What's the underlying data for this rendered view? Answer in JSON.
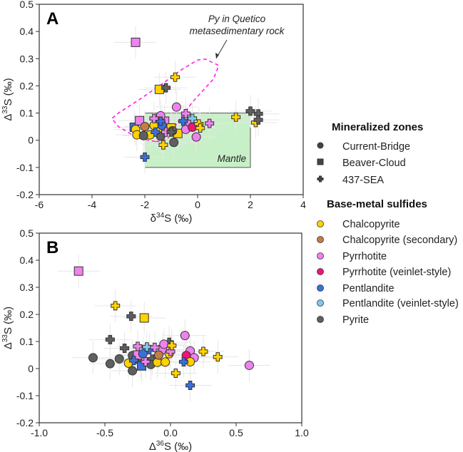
{
  "chart_data": [
    {
      "type": "scatter",
      "panel_label": "A",
      "xlabel": {
        "pre": "δ",
        "sup": "34",
        "post": "S (‰)"
      },
      "ylabel": {
        "pre": "Δ",
        "sup": "33",
        "post": "S (‰)"
      },
      "xlim": [
        -6,
        4
      ],
      "ylim": [
        -0.2,
        0.5
      ],
      "xticks": [
        -6,
        -4,
        -2,
        0,
        2,
        4
      ],
      "yticks": [
        -0.2,
        -0.1,
        0,
        0.1,
        0.2,
        0.3,
        0.4,
        0.5
      ],
      "regions": [
        {
          "name": "Mantle",
          "label": "Mantle",
          "x": [
            -2,
            2
          ],
          "y": [
            -0.1,
            0.1
          ],
          "color": "#c8f0c8"
        }
      ],
      "outline": {
        "label_lines": [
          "Py in Quetico",
          "metasedimentary rock"
        ],
        "color": "#ff22dd",
        "points": [
          [
            -1.6,
            -0.005
          ],
          [
            -2.3,
            0.01
          ],
          [
            -3.0,
            0.05
          ],
          [
            -3.25,
            0.08
          ],
          [
            -3.0,
            0.1
          ],
          [
            -2.2,
            0.15
          ],
          [
            -1.3,
            0.21
          ],
          [
            -0.6,
            0.26
          ],
          [
            0.0,
            0.295
          ],
          [
            0.3,
            0.298
          ],
          [
            0.8,
            0.275
          ],
          [
            0.6,
            0.225
          ],
          [
            -0.2,
            0.14
          ],
          [
            -0.8,
            0.06
          ],
          [
            -1.1,
            0.01
          ],
          [
            -1.3,
            -0.002
          ]
        ]
      },
      "points": [
        {
          "x": -2.35,
          "y": 0.36,
          "zone": "Beaver-Cloud",
          "mineral": "Pyrrhotite"
        },
        {
          "x": -1.45,
          "y": 0.187,
          "zone": "Beaver-Cloud",
          "mineral": "Chalcopyrite"
        },
        {
          "x": -1.2,
          "y": 0.193,
          "zone": "437-SEA",
          "mineral": "Pyrite"
        },
        {
          "x": -0.85,
          "y": 0.232,
          "zone": "437-SEA",
          "mineral": "Chalcopyrite"
        },
        {
          "x": -0.8,
          "y": 0.122,
          "zone": "Current-Bridge",
          "mineral": "Pyrrhotite"
        },
        {
          "x": -2.4,
          "y": 0.048,
          "zone": "Beaver-Cloud",
          "mineral": "Pentlandite"
        },
        {
          "x": -2.2,
          "y": 0.072,
          "zone": "Beaver-Cloud",
          "mineral": "Pyrrhotite"
        },
        {
          "x": -1.25,
          "y": 0.07,
          "zone": "Beaver-Cloud",
          "mineral": "Pyrrhotite"
        },
        {
          "x": -0.75,
          "y": 0.025,
          "zone": "Beaver-Cloud",
          "mineral": "Chalcopyrite"
        },
        {
          "x": -1.0,
          "y": 0.045,
          "zone": "Beaver-Cloud",
          "mineral": "Chalcopyrite"
        },
        {
          "x": -2.0,
          "y": 0.05,
          "zone": "Current-Bridge",
          "mineral": "Chalcopyrite (secondary)"
        },
        {
          "x": -2.35,
          "y": 0.04,
          "zone": "Current-Bridge",
          "mineral": "Chalcopyrite"
        },
        {
          "x": -2.3,
          "y": 0.02,
          "zone": "Current-Bridge",
          "mineral": "Chalcopyrite"
        },
        {
          "x": -1.65,
          "y": 0.055,
          "zone": "Current-Bridge",
          "mineral": "Chalcopyrite"
        },
        {
          "x": -1.8,
          "y": 0.02,
          "zone": "Current-Bridge",
          "mineral": "Chalcopyrite"
        },
        {
          "x": -1.5,
          "y": 0.03,
          "zone": "Current-Bridge",
          "mineral": "Chalcopyrite"
        },
        {
          "x": -2.05,
          "y": 0.017,
          "zone": "Current-Bridge",
          "mineral": "Pyrite"
        },
        {
          "x": -1.4,
          "y": 0.015,
          "zone": "Current-Bridge",
          "mineral": "Pyrite"
        },
        {
          "x": -0.95,
          "y": 0.035,
          "zone": "Current-Bridge",
          "mineral": "Pyrite"
        },
        {
          "x": -0.9,
          "y": -0.008,
          "zone": "Current-Bridge",
          "mineral": "Pyrite"
        },
        {
          "x": -1.4,
          "y": 0.09,
          "zone": "Current-Bridge",
          "mineral": "Pyrrhotite"
        },
        {
          "x": -0.45,
          "y": 0.04,
          "zone": "Current-Bridge",
          "mineral": "Pyrrhotite"
        },
        {
          "x": -0.3,
          "y": 0.065,
          "zone": "Current-Bridge",
          "mineral": "Pyrrhotite"
        },
        {
          "x": -0.05,
          "y": 0.012,
          "zone": "Current-Bridge",
          "mineral": "Pyrrhotite"
        },
        {
          "x": -0.2,
          "y": 0.048,
          "zone": "Current-Bridge",
          "mineral": "Pyrrhotite (veinlet-style)"
        },
        {
          "x": -1.35,
          "y": 0.055,
          "zone": "Current-Bridge",
          "mineral": "Pentlandite"
        },
        {
          "x": -1.4,
          "y": 0.07,
          "zone": "437-SEA",
          "mineral": "Pentlandite"
        },
        {
          "x": -0.55,
          "y": 0.07,
          "zone": "437-SEA",
          "mineral": "Pentlandite"
        },
        {
          "x": -1.6,
          "y": 0.03,
          "zone": "437-SEA",
          "mineral": "Pentlandite"
        },
        {
          "x": -2.0,
          "y": -0.062,
          "zone": "437-SEA",
          "mineral": "Pentlandite"
        },
        {
          "x": -0.2,
          "y": 0.08,
          "zone": "437-SEA",
          "mineral": "Pentlandite (veinlet-style)"
        },
        {
          "x": -0.45,
          "y": 0.098,
          "zone": "437-SEA",
          "mineral": "Pyrrhotite"
        },
        {
          "x": -1.65,
          "y": 0.08,
          "zone": "437-SEA",
          "mineral": "Pyrrhotite"
        },
        {
          "x": 0.45,
          "y": 0.062,
          "zone": "437-SEA",
          "mineral": "Pyrrhotite"
        },
        {
          "x": -1.2,
          "y": 0.03,
          "zone": "437-SEA",
          "mineral": "Pyrrhotite"
        },
        {
          "x": -1.3,
          "y": -0.017,
          "zone": "437-SEA",
          "mineral": "Chalcopyrite"
        },
        {
          "x": 0.05,
          "y": 0.06,
          "zone": "437-SEA",
          "mineral": "Chalcopyrite"
        },
        {
          "x": 0.1,
          "y": 0.045,
          "zone": "437-SEA",
          "mineral": "Chalcopyrite"
        },
        {
          "x": 1.45,
          "y": 0.085,
          "zone": "437-SEA",
          "mineral": "Chalcopyrite"
        },
        {
          "x": 2.2,
          "y": 0.065,
          "zone": "437-SEA",
          "mineral": "Chalcopyrite"
        },
        {
          "x": 2.0,
          "y": 0.107,
          "zone": "437-SEA",
          "mineral": "Pyrite"
        },
        {
          "x": 2.3,
          "y": 0.097,
          "zone": "437-SEA",
          "mineral": "Pyrite"
        },
        {
          "x": 2.3,
          "y": 0.075,
          "zone": "437-SEA",
          "mineral": "Pyrite"
        },
        {
          "x": -1.0,
          "y": 0.03,
          "zone": "437-SEA",
          "mineral": "Pyrite"
        }
      ]
    },
    {
      "type": "scatter",
      "panel_label": "B",
      "xlabel": {
        "pre": "Δ",
        "sup": "36",
        "post": "S (‰)"
      },
      "ylabel": {
        "pre": "Δ",
        "sup": "33",
        "post": "S (‰)"
      },
      "xlim": [
        -1.0,
        1.0
      ],
      "ylim": [
        -0.2,
        0.5
      ],
      "xticks": [
        -1.0,
        -0.5,
        0.0,
        0.5,
        1.0
      ],
      "yticks": [
        -0.2,
        -0.1,
        0,
        0.1,
        0.2,
        0.3,
        0.4,
        0.5
      ],
      "points": [
        {
          "x": -0.7,
          "y": 0.36,
          "zone": "Beaver-Cloud",
          "mineral": "Pyrrhotite"
        },
        {
          "x": -0.42,
          "y": 0.232,
          "zone": "437-SEA",
          "mineral": "Chalcopyrite"
        },
        {
          "x": -0.3,
          "y": 0.193,
          "zone": "437-SEA",
          "mineral": "Pyrite"
        },
        {
          "x": -0.2,
          "y": 0.187,
          "zone": "Beaver-Cloud",
          "mineral": "Chalcopyrite"
        },
        {
          "x": -0.46,
          "y": 0.107,
          "zone": "437-SEA",
          "mineral": "Pyrite"
        },
        {
          "x": -0.35,
          "y": 0.075,
          "zone": "437-SEA",
          "mineral": "Pyrite"
        },
        {
          "x": -0.01,
          "y": 0.097,
          "zone": "437-SEA",
          "mineral": "Pyrite"
        },
        {
          "x": -0.14,
          "y": 0.035,
          "zone": "437-SEA",
          "mineral": "Pyrite"
        },
        {
          "x": -0.23,
          "y": 0.025,
          "zone": "437-SEA",
          "mineral": "Pyrite"
        },
        {
          "x": -0.59,
          "y": 0.04,
          "zone": "Current-Bridge",
          "mineral": "Pyrite"
        },
        {
          "x": -0.46,
          "y": 0.018,
          "zone": "Current-Bridge",
          "mineral": "Pyrite"
        },
        {
          "x": -0.39,
          "y": 0.036,
          "zone": "Current-Bridge",
          "mineral": "Pyrite"
        },
        {
          "x": -0.29,
          "y": 0.048,
          "zone": "Current-Bridge",
          "mineral": "Pyrite"
        },
        {
          "x": -0.29,
          "y": -0.008,
          "zone": "Current-Bridge",
          "mineral": "Pyrite"
        },
        {
          "x": -0.15,
          "y": 0.015,
          "zone": "Current-Bridge",
          "mineral": "Pyrite"
        },
        {
          "x": -0.06,
          "y": 0.07,
          "zone": "Beaver-Cloud",
          "mineral": "Pyrrhotite"
        },
        {
          "x": -0.25,
          "y": 0.05,
          "zone": "Beaver-Cloud",
          "mineral": "Pyrrhotite"
        },
        {
          "x": -0.22,
          "y": 0.01,
          "zone": "Beaver-Cloud",
          "mineral": "Pentlandite"
        },
        {
          "x": 0.11,
          "y": 0.122,
          "zone": "Current-Bridge",
          "mineral": "Pyrrhotite"
        },
        {
          "x": 0.15,
          "y": 0.065,
          "zone": "Current-Bridge",
          "mineral": "Pyrrhotite"
        },
        {
          "x": 0.18,
          "y": 0.04,
          "zone": "Current-Bridge",
          "mineral": "Pyrrhotite"
        },
        {
          "x": 0.6,
          "y": 0.012,
          "zone": "Current-Bridge",
          "mineral": "Pyrrhotite"
        },
        {
          "x": -0.05,
          "y": 0.09,
          "zone": "Current-Bridge",
          "mineral": "Pyrrhotite"
        },
        {
          "x": 0.12,
          "y": 0.048,
          "zone": "Current-Bridge",
          "mineral": "Pyrrhotite (veinlet-style)"
        },
        {
          "x": -0.32,
          "y": 0.02,
          "zone": "Current-Bridge",
          "mineral": "Chalcopyrite"
        },
        {
          "x": -0.1,
          "y": 0.023,
          "zone": "Current-Bridge",
          "mineral": "Chalcopyrite"
        },
        {
          "x": -0.04,
          "y": 0.024,
          "zone": "Current-Bridge",
          "mineral": "Chalcopyrite"
        },
        {
          "x": 0.15,
          "y": 0.025,
          "zone": "Current-Bridge",
          "mineral": "Chalcopyrite"
        },
        {
          "x": -0.01,
          "y": 0.055,
          "zone": "Current-Bridge",
          "mineral": "Chalcopyrite"
        },
        {
          "x": -0.09,
          "y": 0.05,
          "zone": "Current-Bridge",
          "mineral": "Chalcopyrite (secondary)"
        },
        {
          "x": -0.21,
          "y": 0.055,
          "zone": "Current-Bridge",
          "mineral": "Pentlandite"
        },
        {
          "x": -0.28,
          "y": 0.03,
          "zone": "437-SEA",
          "mineral": "Pentlandite"
        },
        {
          "x": 0.1,
          "y": 0.025,
          "zone": "437-SEA",
          "mineral": "Pentlandite"
        },
        {
          "x": 0.15,
          "y": -0.062,
          "zone": "437-SEA",
          "mineral": "Pentlandite"
        },
        {
          "x": -0.16,
          "y": 0.07,
          "zone": "437-SEA",
          "mineral": "Pentlandite"
        },
        {
          "x": -0.18,
          "y": 0.08,
          "zone": "437-SEA",
          "mineral": "Pentlandite (veinlet-style)"
        },
        {
          "x": -0.25,
          "y": 0.082,
          "zone": "437-SEA",
          "mineral": "Pyrrhotite"
        },
        {
          "x": -0.12,
          "y": 0.078,
          "zone": "437-SEA",
          "mineral": "Pyrrhotite"
        },
        {
          "x": 0.0,
          "y": 0.063,
          "zone": "437-SEA",
          "mineral": "Pyrrhotite"
        },
        {
          "x": -0.19,
          "y": 0.025,
          "zone": "437-SEA",
          "mineral": "Pyrrhotite"
        },
        {
          "x": 0.01,
          "y": 0.085,
          "zone": "437-SEA",
          "mineral": "Chalcopyrite"
        },
        {
          "x": 0.25,
          "y": 0.063,
          "zone": "437-SEA",
          "mineral": "Chalcopyrite"
        },
        {
          "x": 0.36,
          "y": 0.043,
          "zone": "437-SEA",
          "mineral": "Chalcopyrite"
        },
        {
          "x": 0.04,
          "y": -0.017,
          "zone": "437-SEA",
          "mineral": "Chalcopyrite"
        }
      ]
    }
  ],
  "legend": {
    "placement": "right",
    "zones_title": "Mineralized zones",
    "zones": [
      {
        "label": "Current-Bridge",
        "shape": "circle"
      },
      {
        "label": "Beaver-Cloud",
        "shape": "square"
      },
      {
        "label": "437-SEA",
        "shape": "plus"
      }
    ],
    "minerals_title": "Base-metal sulfides",
    "minerals": [
      {
        "label": "Chalcopyrite",
        "color": "#ffd200"
      },
      {
        "label": "Chalcopyrite (secondary)",
        "color": "#c67c45"
      },
      {
        "label": "Pyrrhotite",
        "color": "#ee82ee"
      },
      {
        "label": "Pyrrhotite (veinlet-style)",
        "color": "#f0147a"
      },
      {
        "label": "Pentlandite",
        "color": "#3b6fdc"
      },
      {
        "label": "Pentlandite (veinlet-style)",
        "color": "#80c8f0"
      },
      {
        "label": "Pyrite",
        "color": "#5f5f5f"
      }
    ]
  }
}
